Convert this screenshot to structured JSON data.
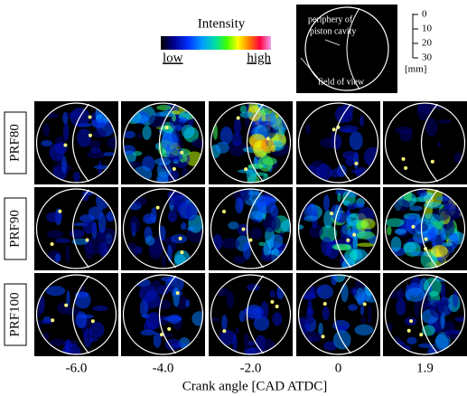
{
  "legend": {
    "title": "Intensity",
    "low": "low",
    "high": "high"
  },
  "schematic": {
    "periphery_label": [
      "periphery of",
      "piston cavity"
    ],
    "field_label": "field of view"
  },
  "scale": {
    "ticks": [
      "0",
      "10",
      "20",
      "30"
    ],
    "unit": "[mm]"
  },
  "rows": [
    "PRF80",
    "PRF90",
    "PRF100"
  ],
  "columns": [
    "-6.0",
    "-4.0",
    "-2.0",
    "0",
    "1.9"
  ],
  "x_axis_title": "Crank angle [CAD ATDC]"
}
